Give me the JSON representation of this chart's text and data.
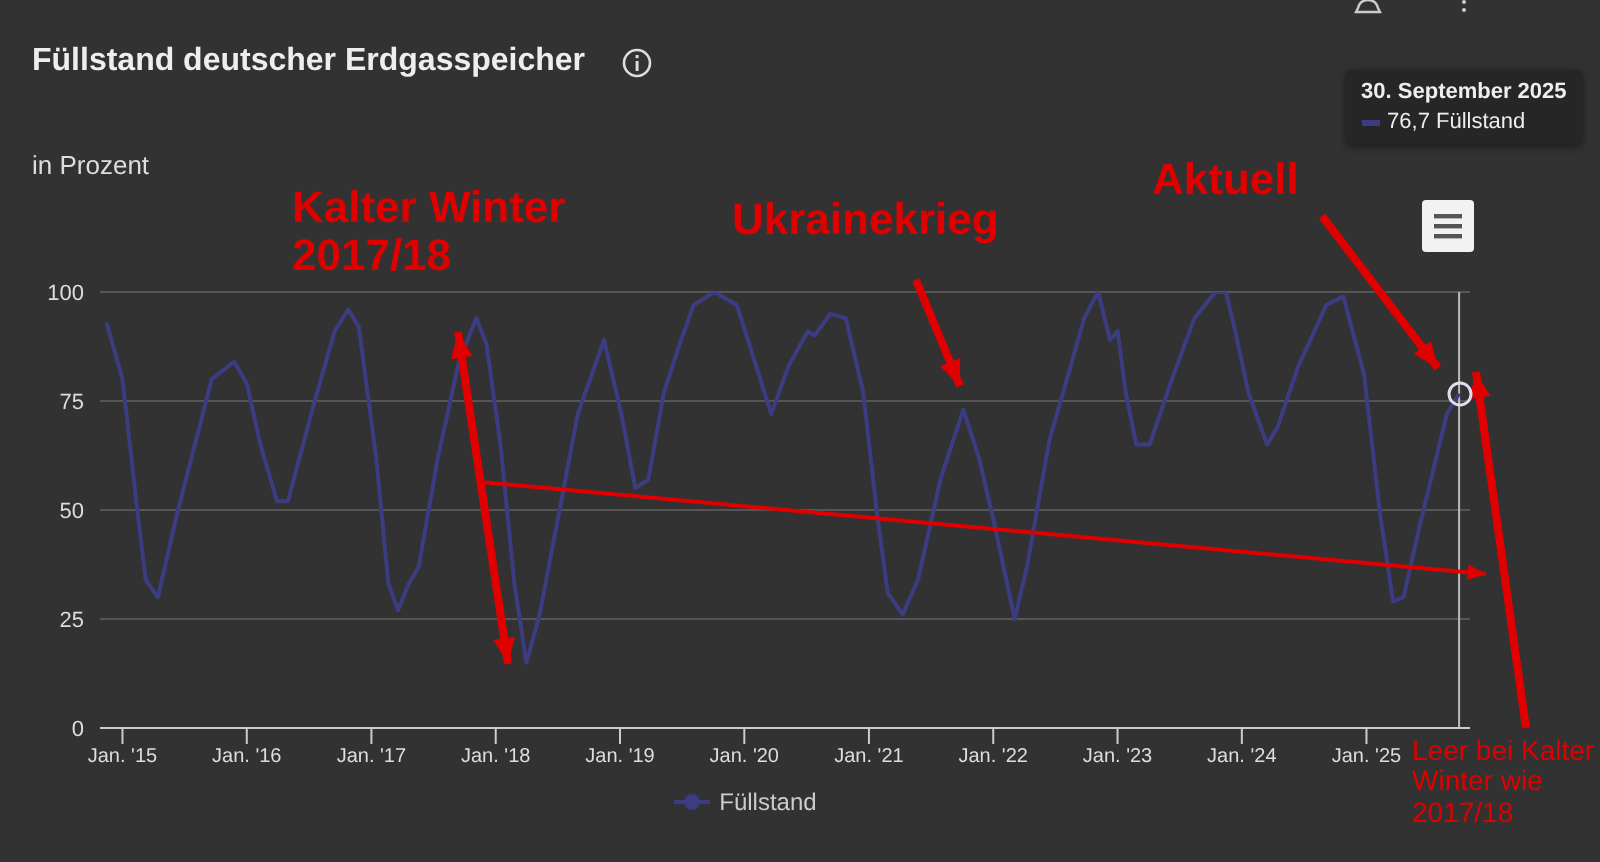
{
  "chart_data": {
    "type": "line",
    "title": "Füllstand deutscher Erdgasspeicher",
    "ylabel": "in Prozent",
    "x": [
      "2014-11-15",
      "2015-01-01",
      "2015-02-15",
      "2015-03-10",
      "2015-04-15",
      "2015-06-10",
      "2015-09-20",
      "2015-11-25",
      "2016-01-01",
      "2016-02-10",
      "2016-03-30",
      "2016-05-01",
      "2016-07-15",
      "2016-09-15",
      "2016-10-25",
      "2016-11-25",
      "2017-01-15",
      "2017-02-20",
      "2017-03-20",
      "2017-04-20",
      "2017-05-20",
      "2017-07-15",
      "2017-09-15",
      "2017-11-05",
      "2017-12-05",
      "2018-01-15",
      "2018-02-25",
      "2018-04-01",
      "2018-05-10",
      "2018-07-05",
      "2018-08-30",
      "2018-11-15",
      "2019-01-05",
      "2019-02-15",
      "2019-03-25",
      "2019-05-10",
      "2019-06-25",
      "2019-08-05",
      "2019-10-05",
      "2019-12-10",
      "2020-02-05",
      "2020-03-20",
      "2020-05-10",
      "2020-07-05",
      "2020-07-25",
      "2020-09-10",
      "2020-10-25",
      "2020-12-15",
      "2021-01-25",
      "2021-02-25",
      "2021-04-10",
      "2021-05-25",
      "2021-07-30",
      "2021-10-05",
      "2021-11-20",
      "2022-01-01",
      "2022-03-05",
      "2022-04-10",
      "2022-06-15",
      "2022-08-20",
      "2022-09-25",
      "2022-11-05",
      "2022-12-10",
      "2023-01-01",
      "2023-01-25",
      "2023-02-25",
      "2023-04-05",
      "2023-06-10",
      "2023-08-15",
      "2023-10-15",
      "2023-11-15",
      "2023-12-10",
      "2024-01-20",
      "2024-03-15",
      "2024-04-15",
      "2024-06-15",
      "2024-09-05",
      "2024-10-25",
      "2024-12-25",
      "2025-02-10",
      "2025-03-20",
      "2025-04-20",
      "2025-06-05",
      "2025-08-25",
      "2025-09-30"
    ],
    "series": [
      {
        "name": "Füllstand",
        "color": "#3c3c82",
        "values": [
          93,
          80,
          49,
          34,
          30,
          49,
          80,
          84,
          79,
          65,
          52,
          52,
          74,
          91,
          96,
          92,
          62,
          33,
          27,
          33,
          37,
          62,
          84,
          94,
          88,
          65,
          33,
          15,
          26,
          49,
          72,
          89,
          72,
          55,
          57,
          77,
          88,
          97,
          100,
          97,
          83,
          72,
          83,
          91,
          90,
          95,
          94,
          77,
          49,
          31,
          26,
          34,
          57,
          73,
          62,
          48,
          25,
          37,
          66,
          84,
          94,
          100,
          89,
          91,
          77,
          65,
          65,
          80,
          94,
          100,
          100,
          92,
          77,
          65,
          69,
          83,
          97,
          99,
          81,
          49,
          29,
          30,
          46,
          72,
          76.7
        ]
      }
    ],
    "xlim": [
      "2014-10-27",
      "2025-11-01"
    ],
    "xticks": [
      {
        "value": "2015-01-01",
        "label": "Jan. '15"
      },
      {
        "value": "2016-01-01",
        "label": "Jan. '16"
      },
      {
        "value": "2017-01-01",
        "label": "Jan. '17"
      },
      {
        "value": "2018-01-01",
        "label": "Jan. '18"
      },
      {
        "value": "2019-01-01",
        "label": "Jan. '19"
      },
      {
        "value": "2020-01-01",
        "label": "Jan. '20"
      },
      {
        "value": "2021-01-01",
        "label": "Jan. '21"
      },
      {
        "value": "2022-01-01",
        "label": "Jan. '22"
      },
      {
        "value": "2023-01-01",
        "label": "Jan. '23"
      },
      {
        "value": "2024-01-01",
        "label": "Jan. '24"
      },
      {
        "value": "2025-01-01",
        "label": "Jan. '25"
      }
    ],
    "ylim": [
      0,
      100
    ],
    "yticks": [
      0,
      25,
      50,
      75,
      100
    ],
    "grid": "y",
    "legend": "bottom",
    "marker": "none",
    "ref_lines": [
      {
        "axis": "x",
        "value": "2025-09-30",
        "color": "#bbbbbb"
      }
    ],
    "annotations": [
      "Kalter Winter 2017/18",
      "Ukrainekrieg",
      "Aktuell",
      "Leer bei Kalter Winter wie 2017/18",
      "30. September 2025",
      "76,7 Füllstand"
    ]
  }
}
